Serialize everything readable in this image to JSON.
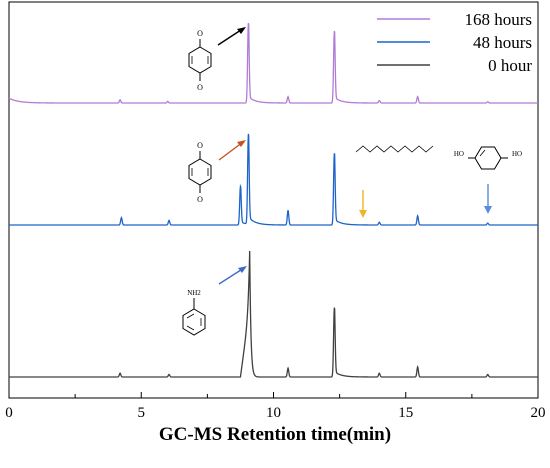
{
  "chart_data": {
    "type": "line",
    "xlabel": "GC-MS Retention time(min)",
    "xlim": [
      0,
      20
    ],
    "x_ticks": [
      "0",
      "5",
      "10",
      "15",
      "20"
    ],
    "legend_position": "top-right",
    "series": [
      {
        "name": "168 hours",
        "color": "#b07cd8",
        "baseline_drift_start": 0.06,
        "peaks": [
          {
            "x": 4.2,
            "h": 0.04
          },
          {
            "x": 6.0,
            "h": 0.02
          },
          {
            "x": 9.05,
            "h": 1.0
          },
          {
            "x": 10.55,
            "h": 0.08
          },
          {
            "x": 12.3,
            "h": 0.9
          },
          {
            "x": 14.0,
            "h": 0.03
          },
          {
            "x": 15.45,
            "h": 0.08
          },
          {
            "x": 18.1,
            "h": 0.015
          }
        ]
      },
      {
        "name": "48 hours",
        "color": "#1e64c8",
        "baseline_drift_start": 0.0,
        "peaks": [
          {
            "x": 4.25,
            "h": 0.08
          },
          {
            "x": 6.05,
            "h": 0.05
          },
          {
            "x": 8.75,
            "h": 0.42
          },
          {
            "x": 9.05,
            "h": 0.98
          },
          {
            "x": 10.55,
            "h": 0.16
          },
          {
            "x": 12.3,
            "h": 0.78
          },
          {
            "x": 14.0,
            "h": 0.03
          },
          {
            "x": 15.45,
            "h": 0.1
          },
          {
            "x": 18.1,
            "h": 0.02
          }
        ]
      },
      {
        "name": "0 hour",
        "color": "#404040",
        "baseline_drift_start": 0.0,
        "broad_peak": {
          "x_start": 8.75,
          "x_peak": 9.1,
          "x_end": 9.25,
          "h": 1.0
        },
        "peaks": [
          {
            "x": 4.2,
            "h": 0.03
          },
          {
            "x": 6.05,
            "h": 0.02
          },
          {
            "x": 10.55,
            "h": 0.07
          },
          {
            "x": 12.3,
            "h": 0.55
          },
          {
            "x": 14.0,
            "h": 0.03
          },
          {
            "x": 15.45,
            "h": 0.08
          },
          {
            "x": 18.1,
            "h": 0.02
          }
        ]
      }
    ],
    "annotations": [
      {
        "label": "benzoquinone structure",
        "series": "168 hours",
        "arrow_color": "#000000"
      },
      {
        "label": "benzoquinone structure",
        "series": "48 hours",
        "arrow_color": "#c8501e"
      },
      {
        "label": "alkane chain structure",
        "series": "48 hours",
        "arrow_color": "#f0b428"
      },
      {
        "label": "hydroquinone structure",
        "series": "48 hours",
        "arrow_color": "#5a8cdc"
      },
      {
        "label": "aniline structure",
        "series": "0 hour",
        "arrow_color": "#3c6ec8"
      }
    ],
    "structure_text": {
      "quinone_o": "O",
      "hydroquinone_oh": "HO",
      "aniline_nh2": "NH2"
    }
  }
}
